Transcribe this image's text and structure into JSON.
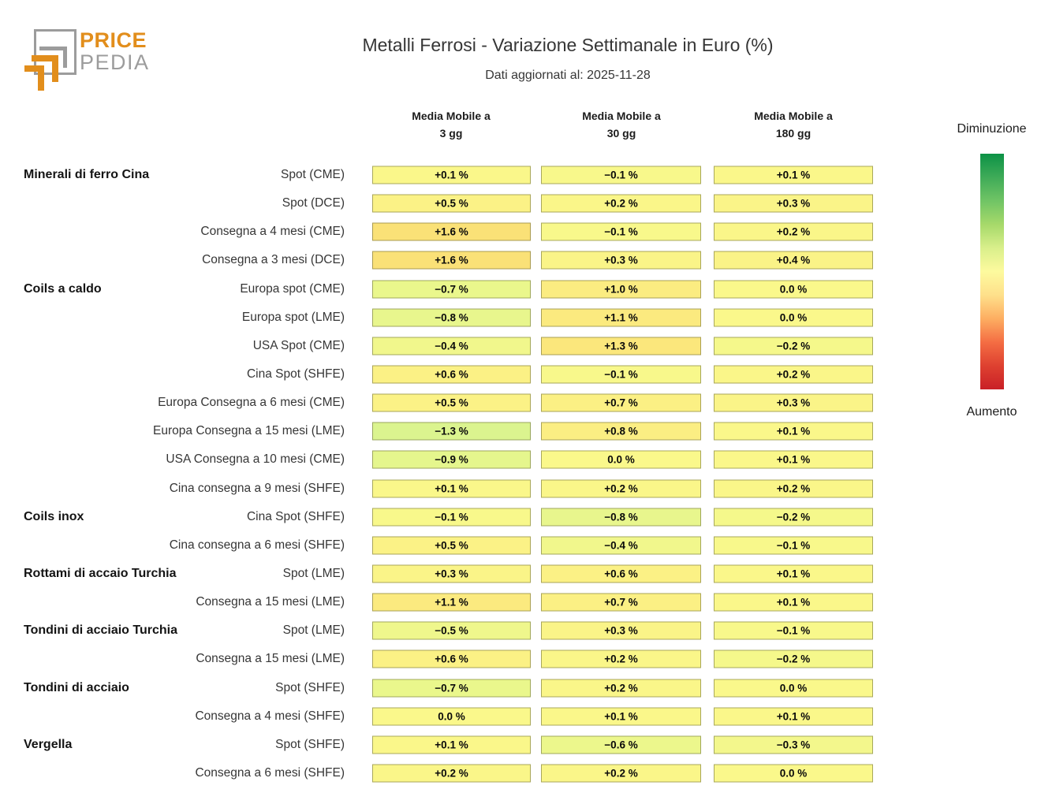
{
  "logo": {
    "line1": "PRICE",
    "line2": "PEDIA",
    "orange": "#E28E1C",
    "gray": "#9C9C9C"
  },
  "header": {
    "title": "Metalli Ferrosi - Variazione Settimanale in Euro (%)",
    "subtitle": "Dati aggiornati al: 2025-11-28"
  },
  "legend": {
    "top_label": "Diminuzione",
    "bottom_label": "Aumento",
    "gradient": [
      "#0c9246",
      "#3fab58",
      "#70c465",
      "#a6d96a",
      "#d9ef8b",
      "#fdfa9e",
      "#fee08b",
      "#fdae61",
      "#f46d43",
      "#de4130",
      "#c92027"
    ]
  },
  "chart_data": {
    "type": "heatmap",
    "title": "Metalli Ferrosi - Variazione Settimanale in Euro (%)",
    "subtitle": "Dati aggiornati al: 2025-11-28",
    "unit": "%",
    "value_format": "signed, one decimal, trailing ' %'",
    "color_mapping": "negative = green (Diminuzione), zero = yellow, positive = orange/red (Aumento)",
    "columns": [
      {
        "line1": "Media Mobile a",
        "line2": "3 gg"
      },
      {
        "line1": "Media Mobile a",
        "line2": "30 gg"
      },
      {
        "line1": "Media Mobile a",
        "line2": "180 gg"
      }
    ],
    "rows": [
      {
        "group": "Minerali di ferro Cina",
        "label": "Spot (CME)",
        "values": [
          0.1,
          -0.1,
          0.1
        ]
      },
      {
        "group": "",
        "label": "Spot (DCE)",
        "values": [
          0.5,
          0.2,
          0.3
        ]
      },
      {
        "group": "",
        "label": "Consegna a 4 mesi (CME)",
        "values": [
          1.6,
          -0.1,
          0.2
        ]
      },
      {
        "group": "",
        "label": "Consegna a 3 mesi (DCE)",
        "values": [
          1.6,
          0.3,
          0.4
        ]
      },
      {
        "group": "Coils a caldo",
        "label": "Europa spot (CME)",
        "values": [
          -0.7,
          1.0,
          0.0
        ]
      },
      {
        "group": "",
        "label": "Europa spot (LME)",
        "values": [
          -0.8,
          1.1,
          0.0
        ]
      },
      {
        "group": "",
        "label": "USA Spot (CME)",
        "values": [
          -0.4,
          1.3,
          -0.2
        ]
      },
      {
        "group": "",
        "label": "Cina Spot (SHFE)",
        "values": [
          0.6,
          -0.1,
          0.2
        ]
      },
      {
        "group": "",
        "label": "Europa Consegna a 6 mesi (CME)",
        "values": [
          0.5,
          0.7,
          0.3
        ]
      },
      {
        "group": "",
        "label": "Europa Consegna a 15 mesi (LME)",
        "values": [
          -1.3,
          0.8,
          0.1
        ]
      },
      {
        "group": "",
        "label": "USA Consegna a 10 mesi (CME)",
        "values": [
          -0.9,
          0.0,
          0.1
        ]
      },
      {
        "group": "",
        "label": "Cina consegna a 9 mesi (SHFE)",
        "values": [
          0.1,
          0.2,
          0.2
        ]
      },
      {
        "group": "Coils inox",
        "label": "Cina Spot (SHFE)",
        "values": [
          -0.1,
          -0.8,
          -0.2
        ]
      },
      {
        "group": "",
        "label": "Cina consegna a 6 mesi (SHFE)",
        "values": [
          0.5,
          -0.4,
          -0.1
        ]
      },
      {
        "group": "Rottami di accaio Turchia",
        "label": "Spot (LME)",
        "values": [
          0.3,
          0.6,
          0.1
        ]
      },
      {
        "group": "",
        "label": "Consegna a 15 mesi (LME)",
        "values": [
          1.1,
          0.7,
          0.1
        ]
      },
      {
        "group": "Tondini di acciaio Turchia",
        "label": "Spot (LME)",
        "values": [
          -0.5,
          0.3,
          -0.1
        ]
      },
      {
        "group": "",
        "label": "Consegna a 15 mesi (LME)",
        "values": [
          0.6,
          0.2,
          -0.2
        ]
      },
      {
        "group": "Tondini di acciaio",
        "label": "Spot (SHFE)",
        "values": [
          -0.7,
          0.2,
          0.0
        ]
      },
      {
        "group": "",
        "label": "Consegna a 4 mesi (SHFE)",
        "values": [
          0.0,
          0.1,
          0.1
        ]
      },
      {
        "group": "Vergella",
        "label": "Spot (SHFE)",
        "values": [
          0.1,
          -0.6,
          -0.3
        ]
      },
      {
        "group": "",
        "label": "Consegna a 6 mesi (SHFE)",
        "values": [
          0.2,
          0.2,
          0.0
        ]
      }
    ]
  }
}
